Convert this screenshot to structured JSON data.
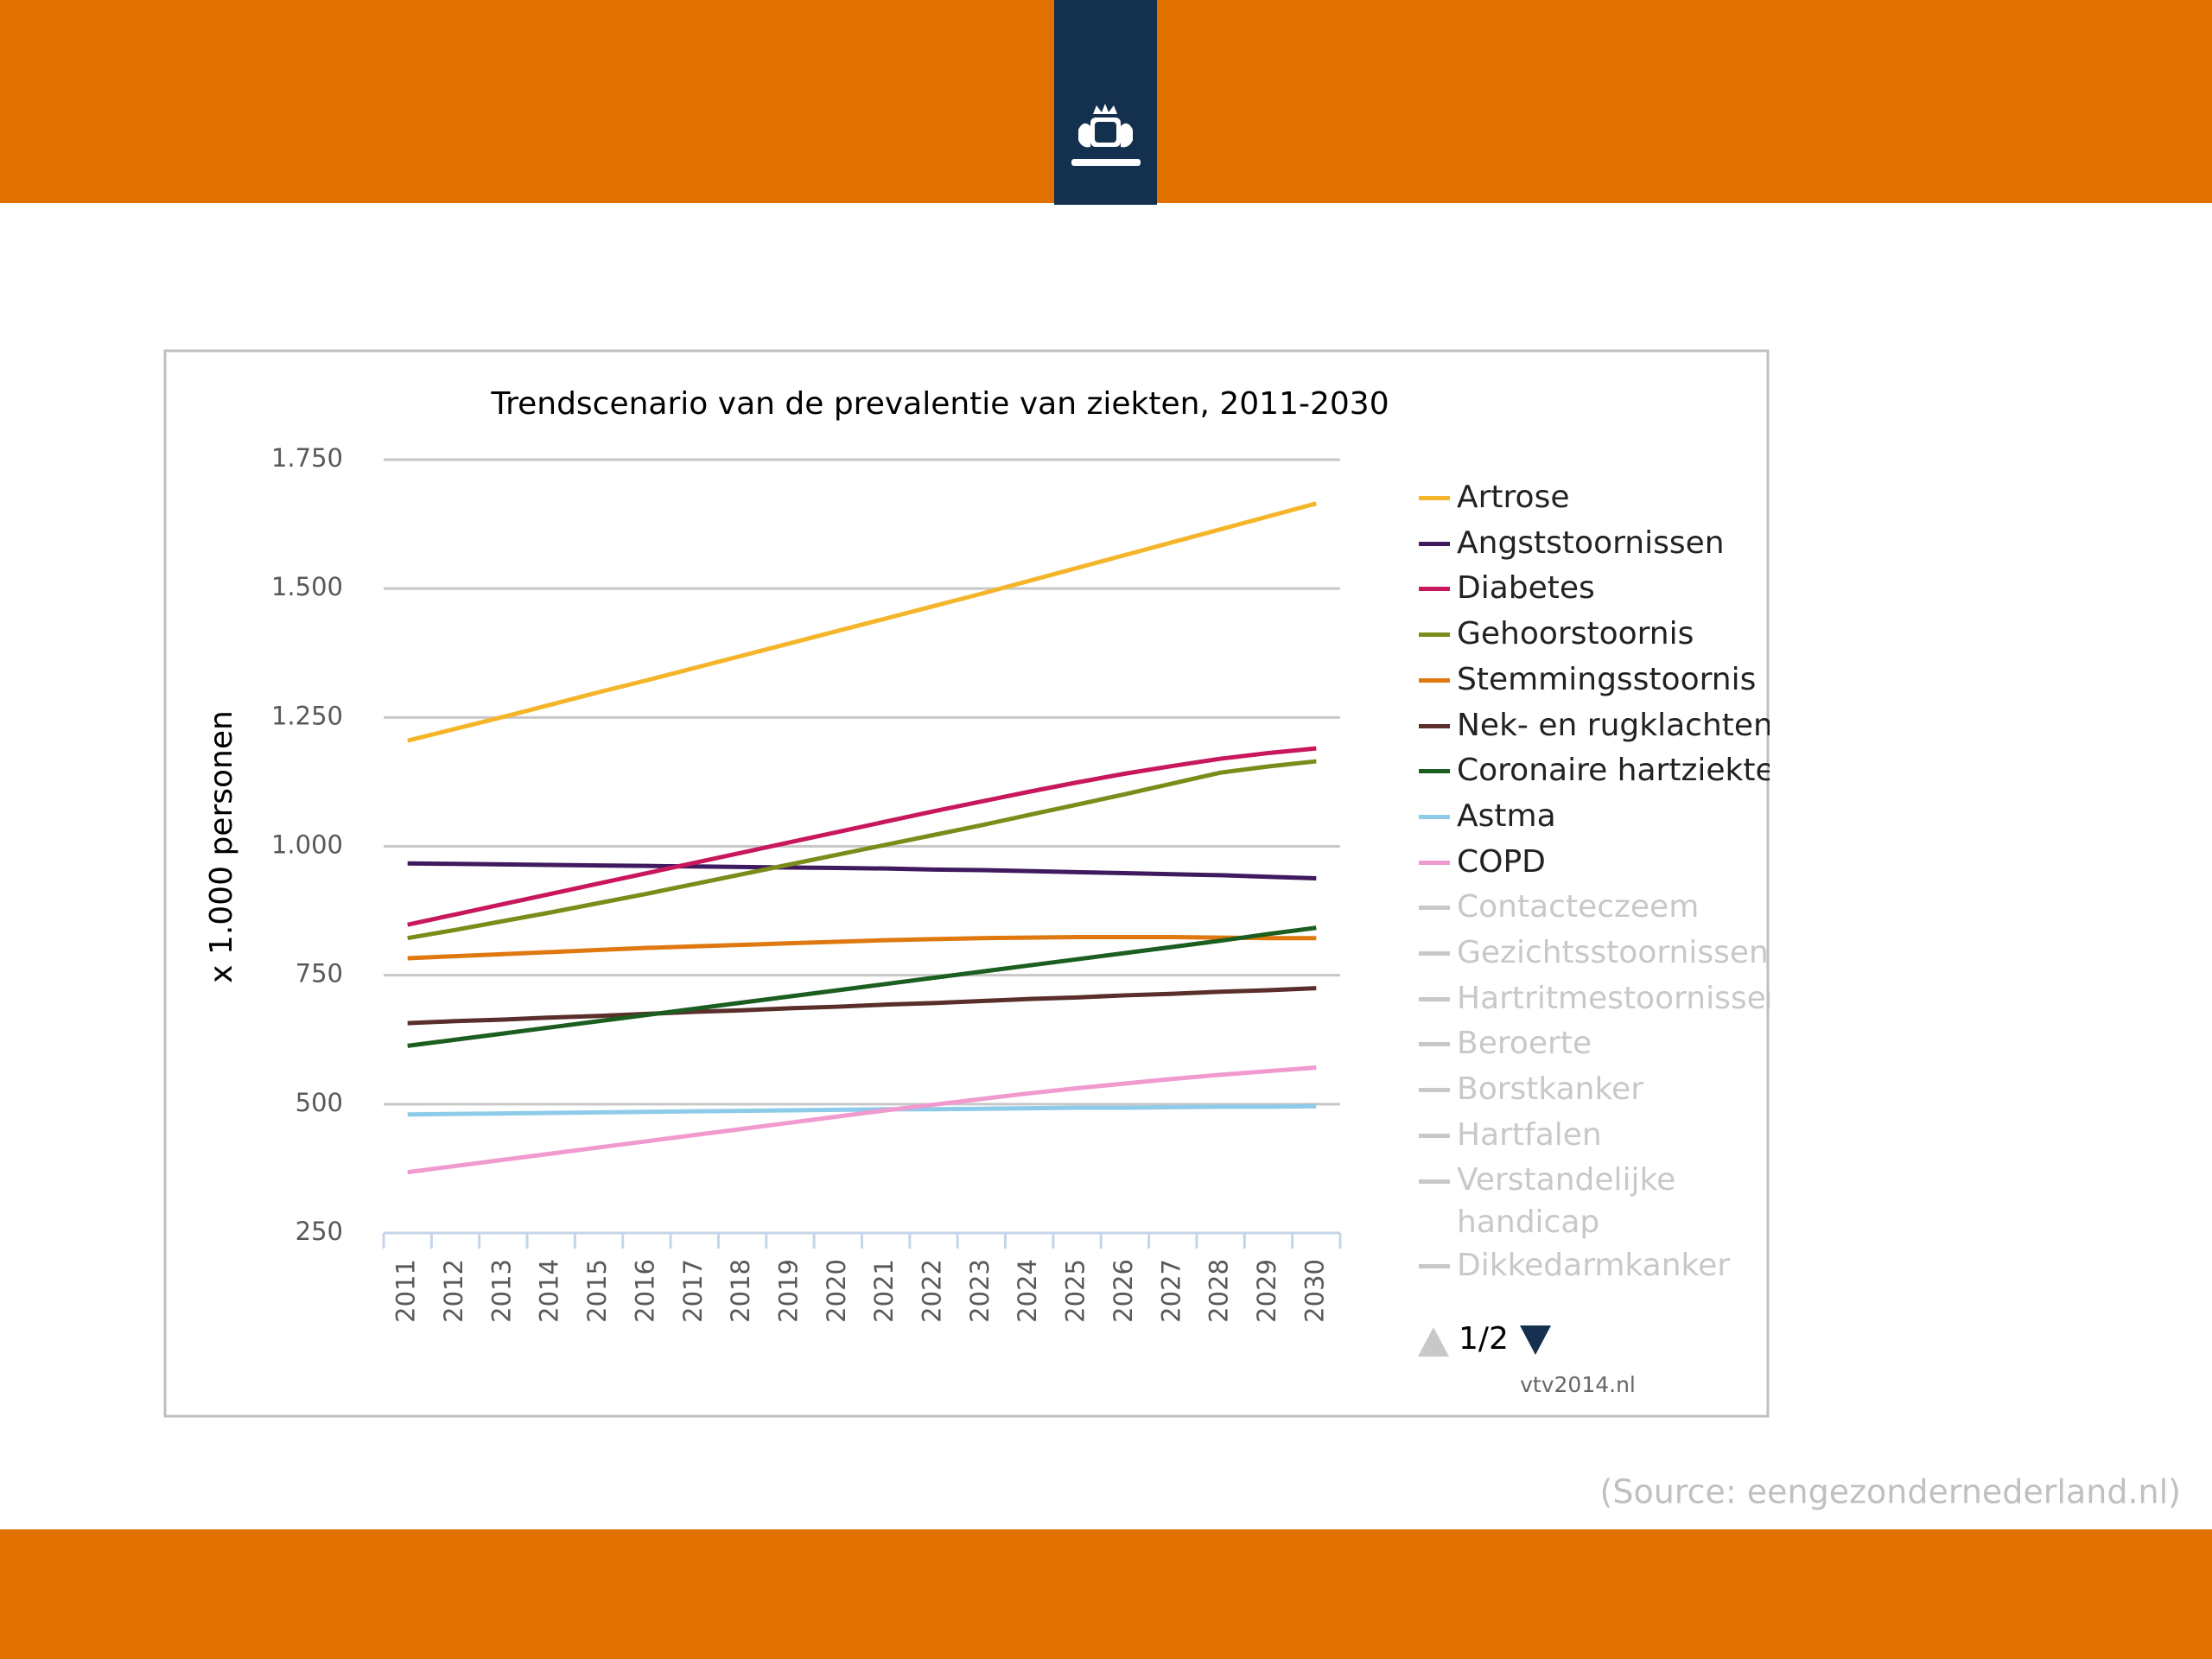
{
  "chart_data": {
    "type": "line",
    "title": "Trendscenario van de prevalentie van ziekten, 2011-2030",
    "y_label": "x 1.000 personen",
    "categories": [
      "2011",
      "2012",
      "2013",
      "2014",
      "2015",
      "2016",
      "2017",
      "2018",
      "2019",
      "2020",
      "2021",
      "2022",
      "2023",
      "2024",
      "2025",
      "2026",
      "2027",
      "2028",
      "2029",
      "2030"
    ],
    "ylim": [
      250,
      1750
    ],
    "yticks": [
      250,
      500,
      750,
      {
        "value": 1000,
        "label": "1.000"
      },
      {
        "value": 1250,
        "label": "1.250"
      },
      {
        "value": 1500,
        "label": "1.500"
      },
      {
        "value": 1750,
        "label": "1.750"
      }
    ],
    "grid": true,
    "legend": "right",
    "series": [
      {
        "name": "Artrose",
        "color": "#f5b52a",
        "values": [
          1205,
          1228,
          1251,
          1275,
          1299,
          1322,
          1346,
          1370,
          1394,
          1418,
          1442,
          1466,
          1490,
          1515,
          1540,
          1565,
          1590,
          1615,
          1640,
          1665
        ]
      },
      {
        "name": "Angststoornissen",
        "color": "#3f1a5e",
        "values": [
          967,
          966,
          965,
          964,
          963,
          962,
          961,
          960,
          959,
          958,
          957,
          955,
          954,
          952,
          950,
          948,
          946,
          944,
          941,
          938
        ]
      },
      {
        "name": "Diabetes",
        "color": "#c8175d",
        "values": [
          848,
          868,
          888,
          908,
          928,
          948,
          968,
          988,
          1008,
          1028,
          1048,
          1068,
          1087,
          1106,
          1124,
          1141,
          1156,
          1170,
          1181,
          1190
        ]
      },
      {
        "name": "Gehoorstoornis",
        "color": "#7a8c1a",
        "values": [
          822,
          838,
          855,
          872,
          890,
          908,
          927,
          946,
          965,
          984,
          1003,
          1022,
          1041,
          1061,
          1081,
          1101,
          1122,
          1143,
          1155,
          1165
        ]
      },
      {
        "name": "Stemmingsstoornis",
        "color": "#e07810",
        "values": [
          783,
          787,
          791,
          795,
          799,
          803,
          806,
          809,
          812,
          815,
          818,
          820,
          822,
          823,
          824,
          824,
          824,
          823,
          822,
          822
        ]
      },
      {
        "name": "Nek- en rugklachten",
        "color": "#5a2e2a",
        "values": [
          657,
          661,
          664,
          668,
          671,
          675,
          679,
          682,
          686,
          689,
          693,
          696,
          700,
          704,
          707,
          711,
          714,
          718,
          721,
          725
        ]
      },
      {
        "name": "Coronaire hartziekten",
        "color": "#1b5e20",
        "values": [
          613,
          625,
          637,
          649,
          661,
          673,
          685,
          697,
          709,
          721,
          733,
          745,
          757,
          769,
          781,
          793,
          805,
          817,
          830,
          842
        ]
      },
      {
        "name": "Astma",
        "color": "#8ecbe8",
        "values": [
          480,
          481,
          482,
          483,
          484,
          485,
          486,
          487,
          488,
          489,
          490,
          490,
          491,
          492,
          493,
          493,
          494,
          495,
          495,
          496
        ]
      },
      {
        "name": "COPD",
        "color": "#f09ad0",
        "values": [
          368,
          380,
          392,
          404,
          416,
          428,
          440,
          452,
          464,
          476,
          488,
          499,
          510,
          521,
          531,
          540,
          549,
          557,
          564,
          571
        ]
      }
    ],
    "inactive_legend": [
      "Contacteczeem",
      "Gezichtsstoornissen",
      "Hartritmestoornissen",
      "Beroerte",
      "Borstkanker",
      "Hartfalen",
      "Verstandelijke handicap",
      "Dikkedarmkanker"
    ],
    "inactive_color": "#c8c8c8",
    "pager": "1/2",
    "credit": "vtv2014.nl"
  },
  "footer": {
    "source": "(Source: eengezondernederland.nl)"
  }
}
